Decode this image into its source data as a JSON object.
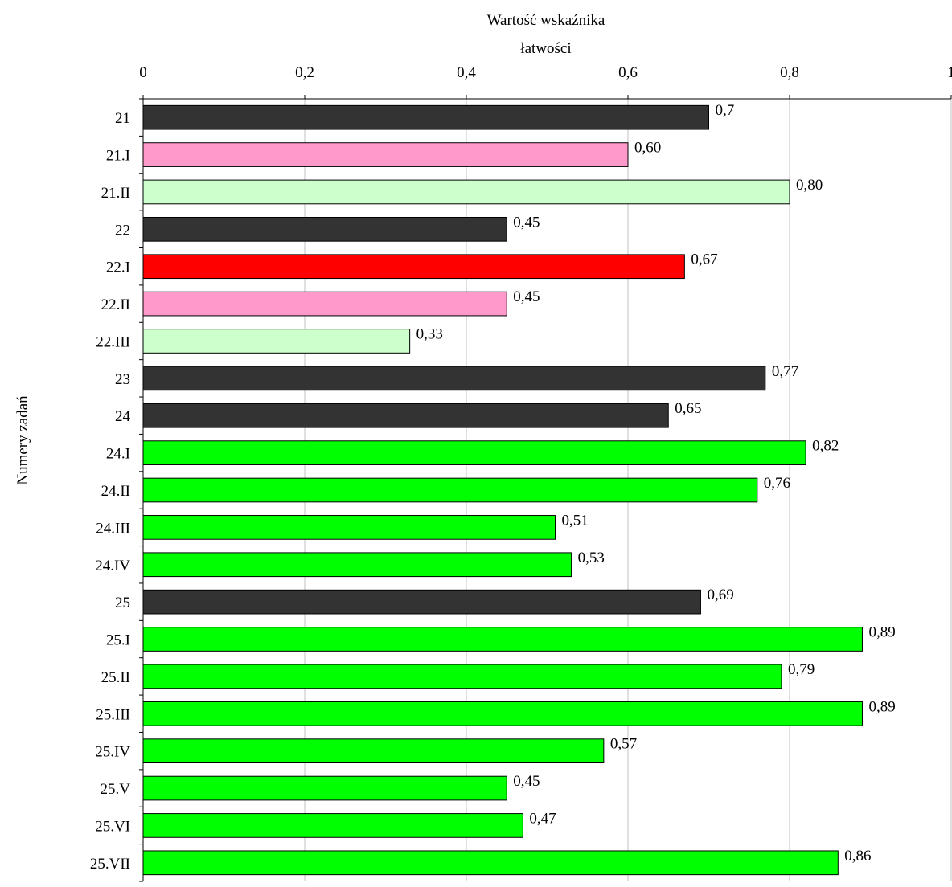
{
  "chart_data": {
    "type": "bar",
    "orientation": "horizontal",
    "title": "",
    "xlabel": "Wartość wskaźnika łatwości",
    "xlabel_lines": [
      "Wartość wskaźnika",
      "łatwości"
    ],
    "ylabel": "Numery zadań",
    "xlim": [
      0,
      1
    ],
    "xticks": [
      0,
      0.2,
      0.4,
      0.6,
      0.8,
      1
    ],
    "xtick_labels": [
      "0",
      "0,2",
      "0,4",
      "0,6",
      "0,8",
      "1"
    ],
    "x_axis_position": "top",
    "grid": "vertical",
    "legend": "none",
    "categories": [
      "21",
      "21.I",
      "21.II",
      "22",
      "22.I",
      "22.II",
      "22.III",
      "23",
      "24",
      "24.I",
      "24.II",
      "24.III",
      "24.IV",
      "25",
      "25.I",
      "25.II",
      "25.III",
      "25.IV",
      "25.V",
      "25.VI",
      "25.VII"
    ],
    "values": [
      0.7,
      0.6,
      0.8,
      0.45,
      0.67,
      0.45,
      0.33,
      0.77,
      0.65,
      0.82,
      0.76,
      0.51,
      0.53,
      0.69,
      0.89,
      0.79,
      0.89,
      0.57,
      0.45,
      0.47,
      0.86
    ],
    "value_labels": [
      "0,7",
      "0,60",
      "0,80",
      "0,45",
      "0,67",
      "0,45",
      "0,33",
      "0,77",
      "0,65",
      "0,82",
      "0,76",
      "0,51",
      "0,53",
      "0,69",
      "0,89",
      "0,79",
      "0,89",
      "0,57",
      "0,45",
      "0,47",
      "0,86"
    ],
    "bar_colors": [
      "#333333",
      "#ff99cc",
      "#ccffcc",
      "#333333",
      "#ff0000",
      "#ff99cc",
      "#ccffcc",
      "#333333",
      "#333333",
      "#00ff00",
      "#00ff00",
      "#00ff00",
      "#00ff00",
      "#333333",
      "#00ff00",
      "#00ff00",
      "#00ff00",
      "#00ff00",
      "#00ff00",
      "#00ff00",
      "#00ff00"
    ],
    "gridline_color": "#c0c0c0",
    "bar_edge_color": "#000000"
  }
}
